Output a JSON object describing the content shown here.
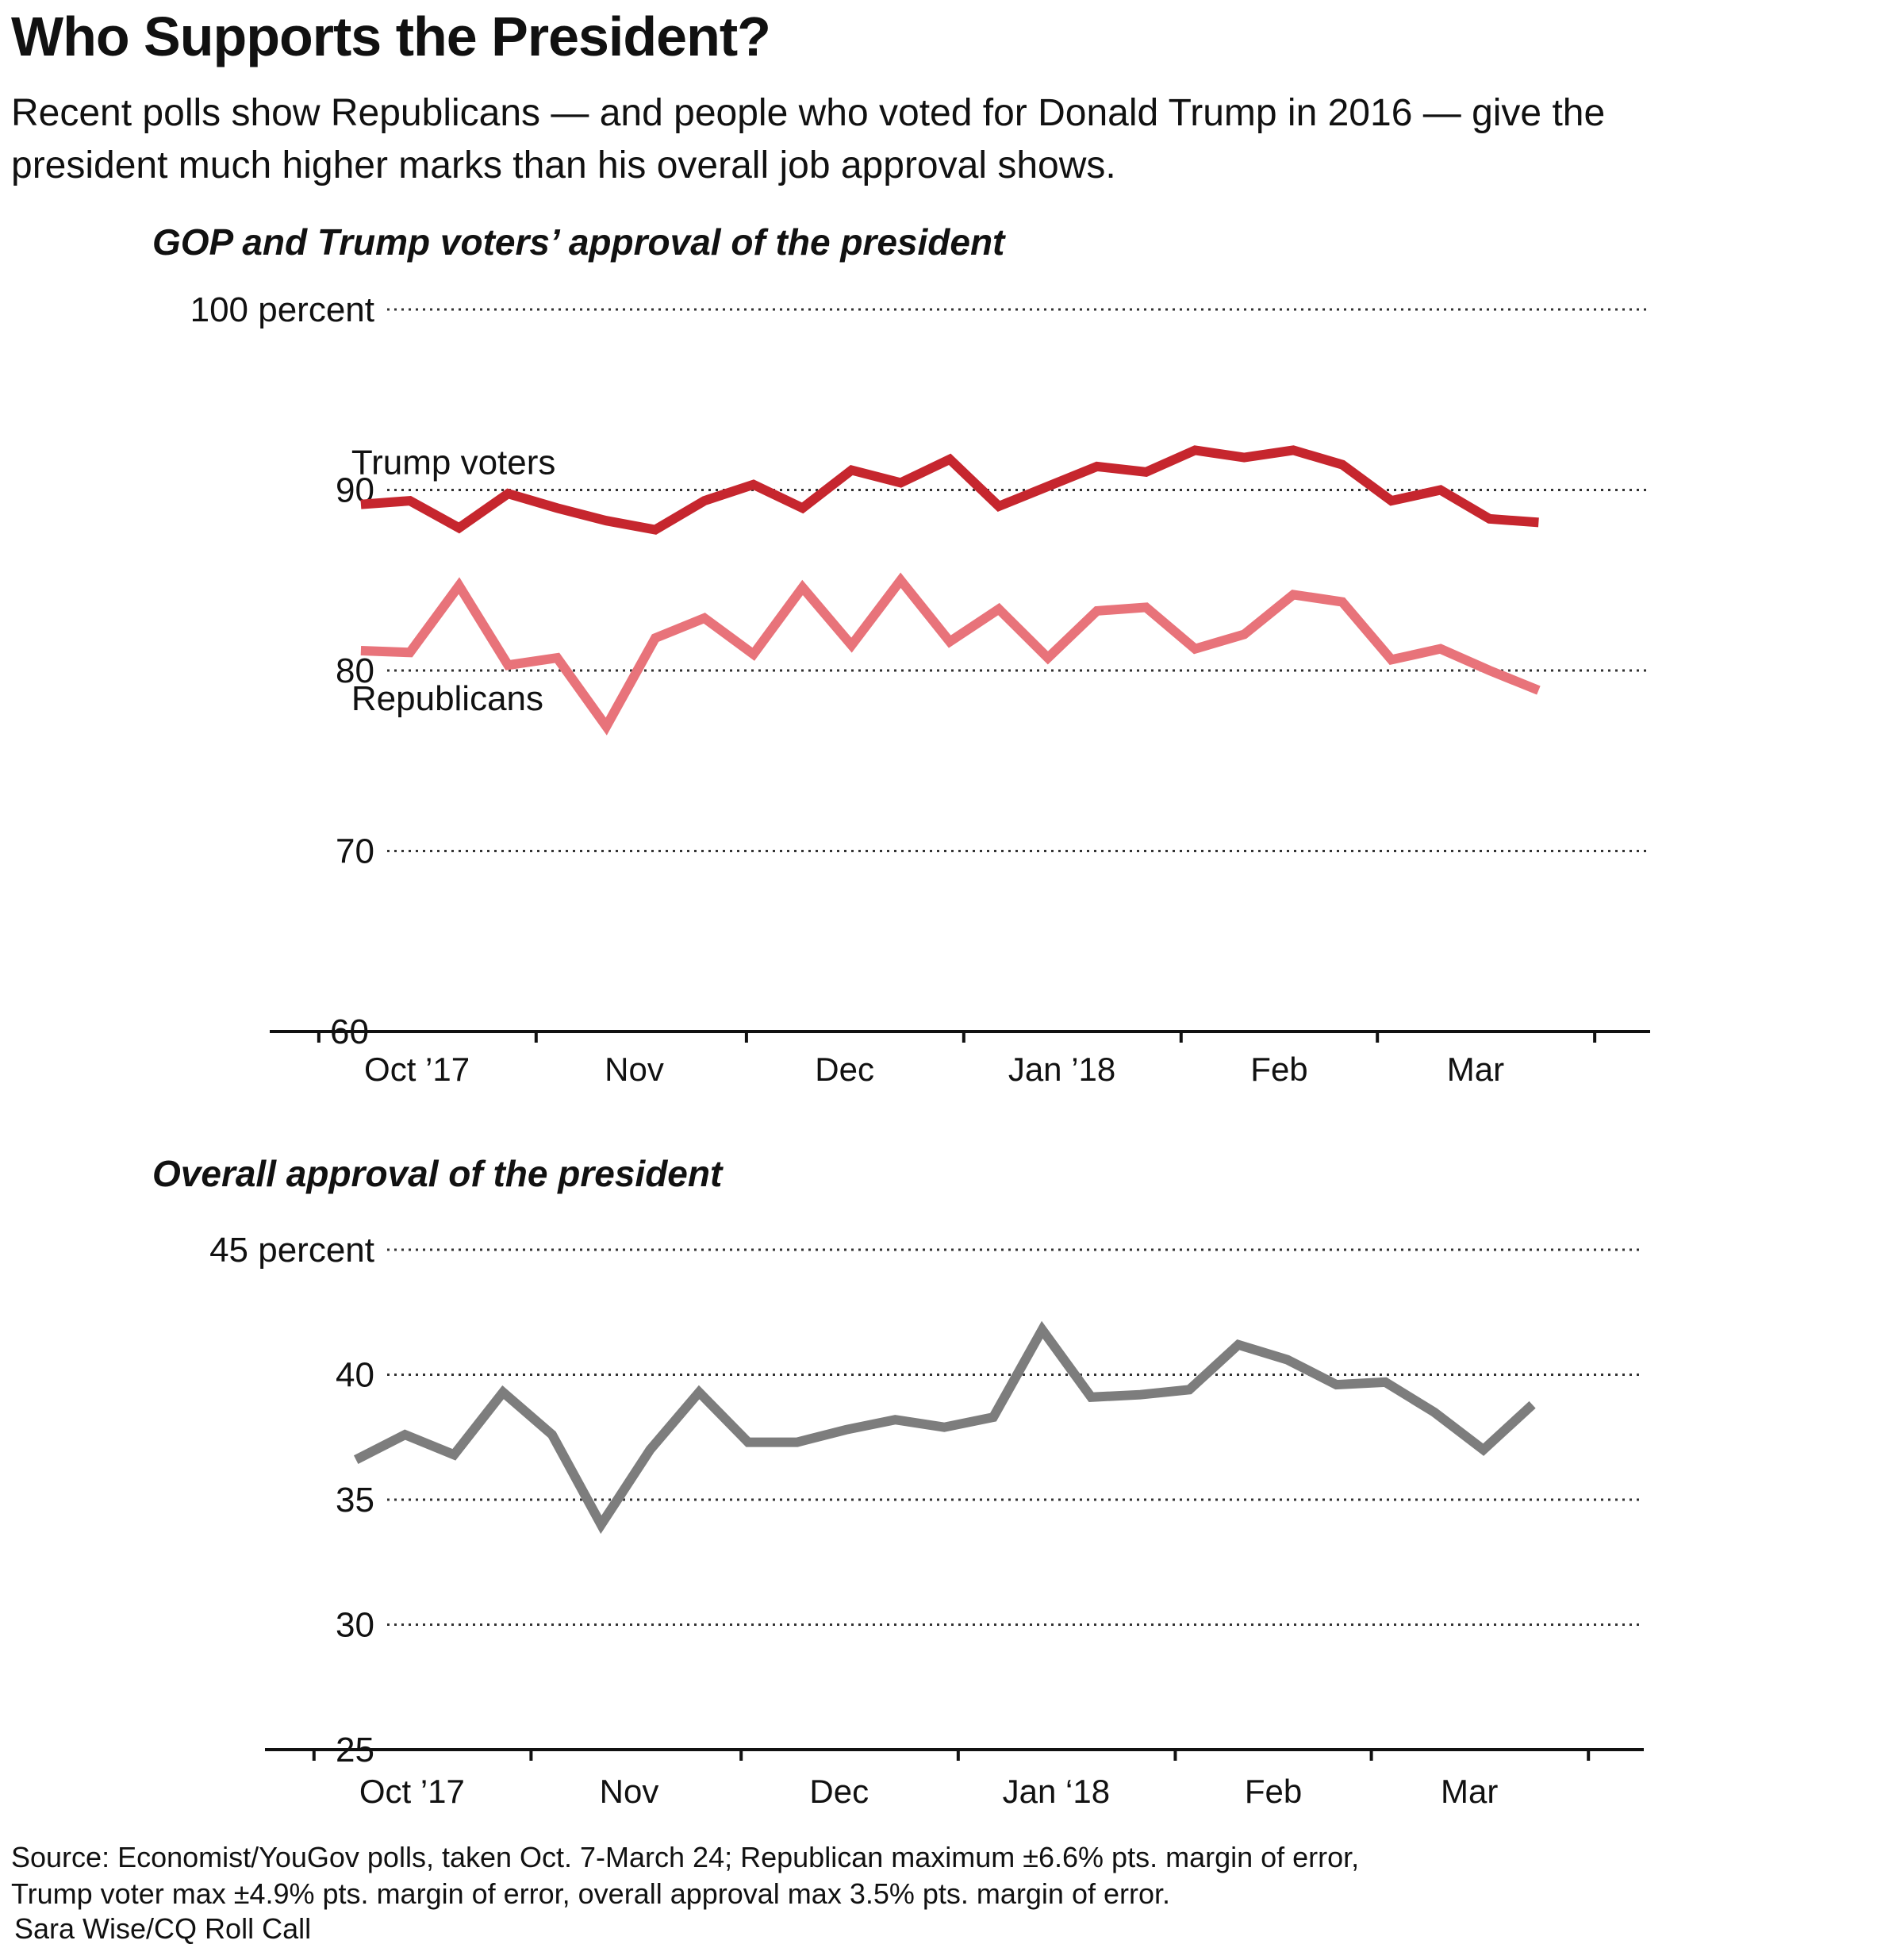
{
  "headline": "Who Supports the President?",
  "deck": [
    "Recent polls show Republicans — and people who voted for Donald Trump in 2016 — give the",
    "president much higher marks than his overall job approval shows."
  ],
  "colors": {
    "trump_voters": "#c6262e",
    "republicans": "#e8737a",
    "overall": "#7d7d7d",
    "axis": "#111111",
    "grid": "#333333"
  },
  "chart_data": [
    {
      "type": "line",
      "title": "GOP and Trump voters’ approval of the president",
      "ylim": [
        60,
        100
      ],
      "ylabel": "",
      "yticks": [
        60,
        70,
        80,
        90,
        100
      ],
      "ytick_labels": [
        "60",
        "70",
        "80",
        "90",
        "100 percent"
      ],
      "grid": true,
      "xlim": [
        "2017-09-24",
        "2018-04-08"
      ],
      "xticks": [
        "2017-10-01",
        "2017-11-01",
        "2017-12-01",
        "2018-01-01",
        "2018-02-01",
        "2018-03-01",
        "2018-04-01"
      ],
      "month_labels": [
        {
          "label": "Oct ’17",
          "date": "2017-10-15"
        },
        {
          "label": "Nov",
          "date": "2017-11-15"
        },
        {
          "label": "Dec",
          "date": "2017-12-15"
        },
        {
          "label": "Jan ’18",
          "date": "2018-01-15"
        },
        {
          "label": "Feb",
          "date": "2018-02-15"
        },
        {
          "label": "Mar",
          "date": "2018-03-15"
        }
      ],
      "x": [
        "2017-10-07",
        "2017-10-14",
        "2017-10-21",
        "2017-10-28",
        "2017-11-04",
        "2017-11-11",
        "2017-11-18",
        "2017-11-25",
        "2017-12-02",
        "2017-12-09",
        "2017-12-16",
        "2017-12-23",
        "2017-12-30",
        "2018-01-06",
        "2018-01-13",
        "2018-01-20",
        "2018-01-27",
        "2018-02-03",
        "2018-02-10",
        "2018-02-17",
        "2018-02-24",
        "2018-03-03",
        "2018-03-10",
        "2018-03-17",
        "2018-03-24"
      ],
      "series": [
        {
          "name": "Trump voters",
          "values": [
            89.2,
            89.4,
            87.9,
            89.8,
            89.0,
            88.3,
            87.8,
            89.4,
            90.3,
            89.0,
            91.1,
            90.4,
            91.7,
            89.1,
            90.2,
            91.3,
            91.0,
            92.2,
            91.8,
            92.2,
            91.4,
            89.4,
            90.0,
            88.4,
            88.2
          ],
          "label_position": "above-start"
        },
        {
          "name": "Republicans",
          "values": [
            81.1,
            81.0,
            84.7,
            80.3,
            80.7,
            76.9,
            81.8,
            82.9,
            80.9,
            84.6,
            81.4,
            85.0,
            81.6,
            83.4,
            80.7,
            83.3,
            83.5,
            81.2,
            82.0,
            84.2,
            83.8,
            80.6,
            81.2,
            80.0,
            78.9
          ],
          "label_position": "below-start"
        }
      ]
    },
    {
      "type": "line",
      "title": "Overall approval of the president",
      "ylim": [
        25,
        45
      ],
      "ylabel": "",
      "yticks": [
        25,
        30,
        35,
        40,
        45
      ],
      "ytick_labels": [
        "25",
        "30",
        "35",
        "40",
        "45 percent"
      ],
      "grid": true,
      "xlim": [
        "2017-09-24",
        "2018-04-08"
      ],
      "xticks": [
        "2017-10-01",
        "2017-11-01",
        "2017-12-01",
        "2018-01-01",
        "2018-02-01",
        "2018-03-01",
        "2018-04-01"
      ],
      "month_labels": [
        {
          "label": "Oct ’17",
          "date": "2017-10-15"
        },
        {
          "label": "Nov",
          "date": "2017-11-15"
        },
        {
          "label": "Dec",
          "date": "2017-12-15"
        },
        {
          "label": "Jan ‘18",
          "date": "2018-01-15"
        },
        {
          "label": "Feb",
          "date": "2018-02-15"
        },
        {
          "label": "Mar",
          "date": "2018-03-15"
        }
      ],
      "x": [
        "2017-10-07",
        "2017-10-14",
        "2017-10-21",
        "2017-10-28",
        "2017-11-04",
        "2017-11-11",
        "2017-11-18",
        "2017-11-25",
        "2017-12-02",
        "2017-12-09",
        "2017-12-16",
        "2017-12-23",
        "2017-12-30",
        "2018-01-06",
        "2018-01-13",
        "2018-01-20",
        "2018-01-27",
        "2018-02-03",
        "2018-02-10",
        "2018-02-17",
        "2018-02-24",
        "2018-03-03",
        "2018-03-10",
        "2018-03-17",
        "2018-03-24"
      ],
      "series": [
        {
          "name": "",
          "values": [
            36.6,
            37.6,
            36.8,
            39.3,
            37.6,
            34.0,
            37.0,
            39.3,
            37.3,
            37.3,
            37.8,
            38.2,
            37.9,
            38.3,
            41.8,
            39.1,
            39.2,
            39.4,
            41.2,
            40.6,
            39.6,
            39.7,
            38.5,
            37.0,
            38.8
          ]
        }
      ]
    }
  ],
  "source": [
    "Source: Economist/YouGov polls, taken Oct. 7-March 24; Republican maximum ±6.6% pts. margin of error,",
    "Trump voter max ±4.9% pts. margin of error, overall approval max 3.5% pts. margin of error."
  ],
  "credit": "Sara Wise/CQ Roll Call"
}
